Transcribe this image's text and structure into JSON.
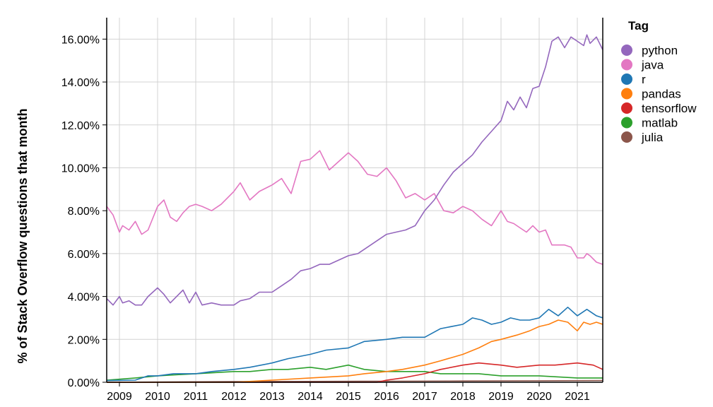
{
  "chart_data": {
    "type": "line",
    "xlabel": "",
    "ylabel": "% of Stack Overflow questions that month",
    "x_range": [
      "2008-09",
      "2021-09"
    ],
    "ylim": [
      0,
      0.17
    ],
    "y_ticks": [
      0,
      0.02,
      0.04,
      0.06,
      0.08,
      0.1,
      0.12,
      0.14,
      0.16
    ],
    "y_tick_labels": [
      "0.00%",
      "2.00%",
      "4.00%",
      "6.00%",
      "8.00%",
      "10.00%",
      "12.00%",
      "14.00%",
      "16.00%"
    ],
    "x_ticks": [
      "2009-01",
      "2010-01",
      "2011-01",
      "2012-01",
      "2013-01",
      "2014-01",
      "2015-01",
      "2016-01",
      "2017-01",
      "2018-01",
      "2019-01",
      "2020-01",
      "2021-01"
    ],
    "x_tick_labels": [
      "2009",
      "2010",
      "2011",
      "2012",
      "2013",
      "2014",
      "2015",
      "2016",
      "2017",
      "2018",
      "2019",
      "2020",
      "2021"
    ],
    "grid": true,
    "legend": {
      "title": "Tag",
      "placement": "right"
    },
    "series": [
      {
        "name": "python",
        "color": "#9467bd",
        "points": [
          [
            "2008-09",
            0.039
          ],
          [
            "2008-11",
            0.036
          ],
          [
            "2009-01",
            0.04
          ],
          [
            "2009-02",
            0.037
          ],
          [
            "2009-04",
            0.038
          ],
          [
            "2009-06",
            0.036
          ],
          [
            "2009-08",
            0.036
          ],
          [
            "2009-10",
            0.04
          ],
          [
            "2010-01",
            0.044
          ],
          [
            "2010-03",
            0.041
          ],
          [
            "2010-05",
            0.037
          ],
          [
            "2010-07",
            0.04
          ],
          [
            "2010-09",
            0.043
          ],
          [
            "2010-11",
            0.037
          ],
          [
            "2011-01",
            0.042
          ],
          [
            "2011-03",
            0.036
          ],
          [
            "2011-06",
            0.037
          ],
          [
            "2011-09",
            0.036
          ],
          [
            "2012-01",
            0.036
          ],
          [
            "2012-03",
            0.038
          ],
          [
            "2012-06",
            0.039
          ],
          [
            "2012-09",
            0.042
          ],
          [
            "2013-01",
            0.042
          ],
          [
            "2013-04",
            0.045
          ],
          [
            "2013-07",
            0.048
          ],
          [
            "2013-10",
            0.052
          ],
          [
            "2014-01",
            0.053
          ],
          [
            "2014-04",
            0.055
          ],
          [
            "2014-07",
            0.055
          ],
          [
            "2014-10",
            0.057
          ],
          [
            "2015-01",
            0.059
          ],
          [
            "2015-04",
            0.06
          ],
          [
            "2015-07",
            0.063
          ],
          [
            "2015-10",
            0.066
          ],
          [
            "2016-01",
            0.069
          ],
          [
            "2016-04",
            0.07
          ],
          [
            "2016-07",
            0.071
          ],
          [
            "2016-10",
            0.073
          ],
          [
            "2017-01",
            0.08
          ],
          [
            "2017-04",
            0.085
          ],
          [
            "2017-07",
            0.092
          ],
          [
            "2017-10",
            0.098
          ],
          [
            "2018-01",
            0.102
          ],
          [
            "2018-04",
            0.106
          ],
          [
            "2018-07",
            0.112
          ],
          [
            "2018-10",
            0.117
          ],
          [
            "2019-01",
            0.122
          ],
          [
            "2019-03",
            0.131
          ],
          [
            "2019-05",
            0.127
          ],
          [
            "2019-07",
            0.133
          ],
          [
            "2019-09",
            0.128
          ],
          [
            "2019-11",
            0.137
          ],
          [
            "2020-01",
            0.138
          ],
          [
            "2020-03",
            0.147
          ],
          [
            "2020-05",
            0.159
          ],
          [
            "2020-07",
            0.161
          ],
          [
            "2020-09",
            0.156
          ],
          [
            "2020-11",
            0.161
          ],
          [
            "2021-01",
            0.159
          ],
          [
            "2021-03",
            0.157
          ],
          [
            "2021-04",
            0.162
          ],
          [
            "2021-05",
            0.158
          ],
          [
            "2021-07",
            0.161
          ],
          [
            "2021-09",
            0.155
          ]
        ]
      },
      {
        "name": "java",
        "color": "#e377c2",
        "points": [
          [
            "2008-09",
            0.082
          ],
          [
            "2008-11",
            0.078
          ],
          [
            "2009-01",
            0.07
          ],
          [
            "2009-02",
            0.073
          ],
          [
            "2009-04",
            0.071
          ],
          [
            "2009-06",
            0.075
          ],
          [
            "2009-08",
            0.069
          ],
          [
            "2009-10",
            0.071
          ],
          [
            "2010-01",
            0.082
          ],
          [
            "2010-03",
            0.085
          ],
          [
            "2010-05",
            0.077
          ],
          [
            "2010-07",
            0.075
          ],
          [
            "2010-09",
            0.079
          ],
          [
            "2010-11",
            0.082
          ],
          [
            "2011-01",
            0.083
          ],
          [
            "2011-03",
            0.082
          ],
          [
            "2011-06",
            0.08
          ],
          [
            "2011-09",
            0.083
          ],
          [
            "2012-01",
            0.089
          ],
          [
            "2012-03",
            0.093
          ],
          [
            "2012-06",
            0.085
          ],
          [
            "2012-09",
            0.089
          ],
          [
            "2013-01",
            0.092
          ],
          [
            "2013-04",
            0.095
          ],
          [
            "2013-07",
            0.088
          ],
          [
            "2013-10",
            0.103
          ],
          [
            "2014-01",
            0.104
          ],
          [
            "2014-04",
            0.108
          ],
          [
            "2014-07",
            0.099
          ],
          [
            "2014-10",
            0.103
          ],
          [
            "2015-01",
            0.107
          ],
          [
            "2015-04",
            0.103
          ],
          [
            "2015-07",
            0.097
          ],
          [
            "2015-10",
            0.096
          ],
          [
            "2016-01",
            0.1
          ],
          [
            "2016-04",
            0.094
          ],
          [
            "2016-07",
            0.086
          ],
          [
            "2016-10",
            0.088
          ],
          [
            "2017-01",
            0.085
          ],
          [
            "2017-04",
            0.088
          ],
          [
            "2017-07",
            0.08
          ],
          [
            "2017-10",
            0.079
          ],
          [
            "2018-01",
            0.082
          ],
          [
            "2018-04",
            0.08
          ],
          [
            "2018-07",
            0.076
          ],
          [
            "2018-10",
            0.073
          ],
          [
            "2019-01",
            0.08
          ],
          [
            "2019-03",
            0.075
          ],
          [
            "2019-05",
            0.074
          ],
          [
            "2019-07",
            0.072
          ],
          [
            "2019-09",
            0.07
          ],
          [
            "2019-11",
            0.073
          ],
          [
            "2020-01",
            0.07
          ],
          [
            "2020-03",
            0.071
          ],
          [
            "2020-05",
            0.064
          ],
          [
            "2020-07",
            0.064
          ],
          [
            "2020-09",
            0.064
          ],
          [
            "2020-11",
            0.063
          ],
          [
            "2021-01",
            0.058
          ],
          [
            "2021-03",
            0.058
          ],
          [
            "2021-04",
            0.06
          ],
          [
            "2021-05",
            0.059
          ],
          [
            "2021-07",
            0.056
          ],
          [
            "2021-09",
            0.055
          ]
        ]
      },
      {
        "name": "r",
        "color": "#1f77b4",
        "points": [
          [
            "2008-09",
            0.0008
          ],
          [
            "2009-06",
            0.001
          ],
          [
            "2009-10",
            0.003
          ],
          [
            "2010-01",
            0.003
          ],
          [
            "2010-06",
            0.004
          ],
          [
            "2011-01",
            0.004
          ],
          [
            "2011-06",
            0.005
          ],
          [
            "2012-01",
            0.006
          ],
          [
            "2012-06",
            0.007
          ],
          [
            "2013-01",
            0.009
          ],
          [
            "2013-06",
            0.011
          ],
          [
            "2014-01",
            0.013
          ],
          [
            "2014-06",
            0.015
          ],
          [
            "2015-01",
            0.016
          ],
          [
            "2015-06",
            0.019
          ],
          [
            "2016-01",
            0.02
          ],
          [
            "2016-06",
            0.021
          ],
          [
            "2017-01",
            0.021
          ],
          [
            "2017-06",
            0.025
          ],
          [
            "2018-01",
            0.027
          ],
          [
            "2018-04",
            0.03
          ],
          [
            "2018-07",
            0.029
          ],
          [
            "2018-10",
            0.027
          ],
          [
            "2019-01",
            0.028
          ],
          [
            "2019-04",
            0.03
          ],
          [
            "2019-07",
            0.029
          ],
          [
            "2019-10",
            0.029
          ],
          [
            "2020-01",
            0.03
          ],
          [
            "2020-04",
            0.034
          ],
          [
            "2020-07",
            0.031
          ],
          [
            "2020-10",
            0.035
          ],
          [
            "2021-01",
            0.031
          ],
          [
            "2021-04",
            0.034
          ],
          [
            "2021-07",
            0.031
          ],
          [
            "2021-09",
            0.03
          ]
        ]
      },
      {
        "name": "pandas",
        "color": "#ff7f0e",
        "points": [
          [
            "2008-09",
            0.0
          ],
          [
            "2012-01",
            0.0
          ],
          [
            "2013-01",
            0.001
          ],
          [
            "2014-01",
            0.002
          ],
          [
            "2015-01",
            0.003
          ],
          [
            "2015-06",
            0.004
          ],
          [
            "2016-01",
            0.005
          ],
          [
            "2016-06",
            0.006
          ],
          [
            "2017-01",
            0.008
          ],
          [
            "2017-06",
            0.01
          ],
          [
            "2018-01",
            0.013
          ],
          [
            "2018-06",
            0.016
          ],
          [
            "2018-10",
            0.019
          ],
          [
            "2019-01",
            0.02
          ],
          [
            "2019-06",
            0.022
          ],
          [
            "2019-10",
            0.024
          ],
          [
            "2020-01",
            0.026
          ],
          [
            "2020-04",
            0.027
          ],
          [
            "2020-07",
            0.029
          ],
          [
            "2020-10",
            0.028
          ],
          [
            "2021-01",
            0.024
          ],
          [
            "2021-03",
            0.028
          ],
          [
            "2021-05",
            0.027
          ],
          [
            "2021-07",
            0.028
          ],
          [
            "2021-09",
            0.027
          ]
        ]
      },
      {
        "name": "tensorflow",
        "color": "#d62728",
        "points": [
          [
            "2008-09",
            0.0
          ],
          [
            "2015-10",
            0.0
          ],
          [
            "2016-01",
            0.001
          ],
          [
            "2016-06",
            0.002
          ],
          [
            "2017-01",
            0.004
          ],
          [
            "2017-06",
            0.006
          ],
          [
            "2018-01",
            0.008
          ],
          [
            "2018-06",
            0.009
          ],
          [
            "2019-01",
            0.008
          ],
          [
            "2019-06",
            0.007
          ],
          [
            "2020-01",
            0.008
          ],
          [
            "2020-06",
            0.008
          ],
          [
            "2021-01",
            0.009
          ],
          [
            "2021-06",
            0.008
          ],
          [
            "2021-09",
            0.006
          ]
        ]
      },
      {
        "name": "matlab",
        "color": "#2ca02c",
        "points": [
          [
            "2008-09",
            0.001
          ],
          [
            "2009-06",
            0.002
          ],
          [
            "2010-01",
            0.003
          ],
          [
            "2011-01",
            0.004
          ],
          [
            "2012-01",
            0.005
          ],
          [
            "2012-06",
            0.005
          ],
          [
            "2013-01",
            0.006
          ],
          [
            "2013-06",
            0.006
          ],
          [
            "2014-01",
            0.007
          ],
          [
            "2014-06",
            0.006
          ],
          [
            "2015-01",
            0.008
          ],
          [
            "2015-06",
            0.006
          ],
          [
            "2016-01",
            0.005
          ],
          [
            "2016-06",
            0.005
          ],
          [
            "2017-01",
            0.005
          ],
          [
            "2017-06",
            0.004
          ],
          [
            "2018-01",
            0.004
          ],
          [
            "2018-06",
            0.004
          ],
          [
            "2019-01",
            0.003
          ],
          [
            "2020-01",
            0.003
          ],
          [
            "2021-01",
            0.002
          ],
          [
            "2021-09",
            0.002
          ]
        ]
      },
      {
        "name": "julia",
        "color": "#8c564b",
        "points": [
          [
            "2008-09",
            0.0
          ],
          [
            "2012-01",
            0.0003
          ],
          [
            "2014-01",
            0.0004
          ],
          [
            "2016-01",
            0.0005
          ],
          [
            "2018-01",
            0.0006
          ],
          [
            "2020-01",
            0.0007
          ],
          [
            "2021-09",
            0.0008
          ]
        ]
      }
    ]
  }
}
